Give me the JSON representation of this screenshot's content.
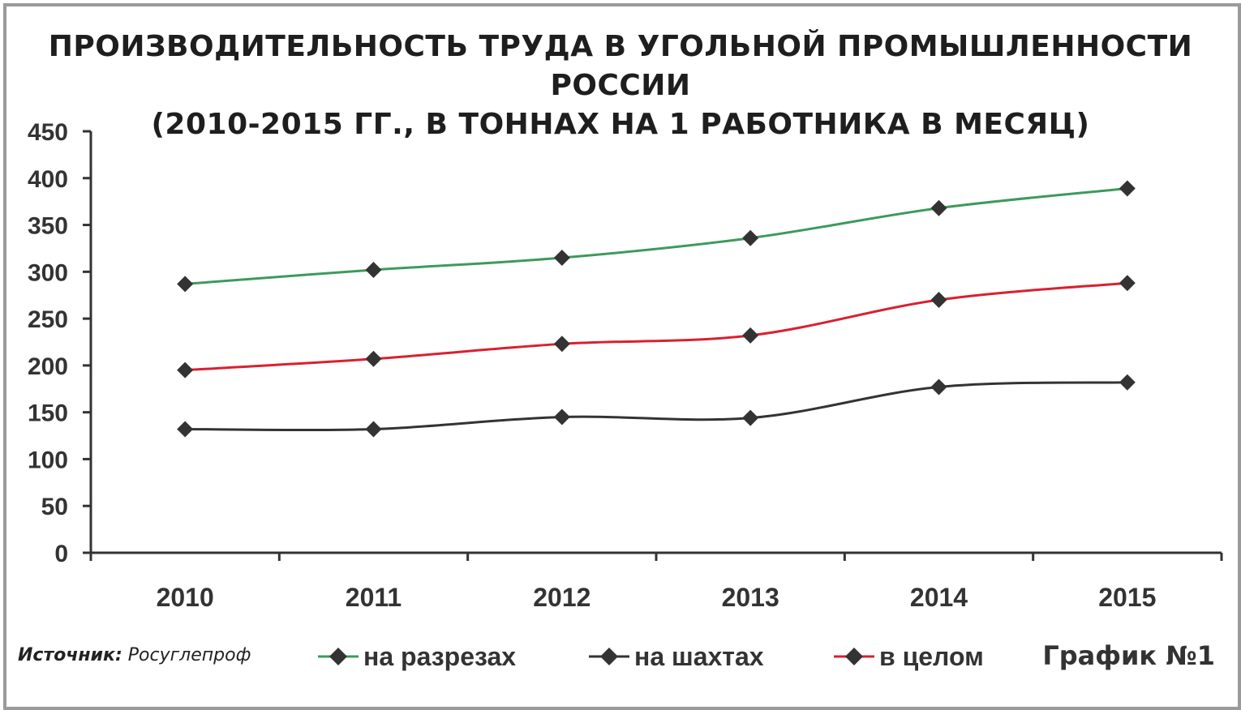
{
  "title": {
    "line1": "ПРОИЗВОДИТЕЛЬНОСТЬ ТРУДА В УГОЛЬНОЙ ПРОМЫШЛЕННОСТИ РОССИИ",
    "line2": "(2010-2015 ГГ., В ТОННАХ НА 1 РАБОТНИКА В МЕСЯЦ)"
  },
  "source": {
    "label": "Источник:",
    "value": "Росуглепроф"
  },
  "graph_number": "График №1",
  "chart_data": {
    "type": "line",
    "title": "ПРОИЗВОДИТЕЛЬНОСТЬ ТРУДА В УГОЛЬНОЙ ПРОМЫШЛЕННОСТИ РОССИИ (2010-2015 ГГ., В ТОННАХ НА 1 РАБОТНИКА В МЕСЯЦ)",
    "categories": [
      "2010",
      "2011",
      "2012",
      "2013",
      "2014",
      "2015"
    ],
    "ylim": [
      0,
      450
    ],
    "yticks": [
      0,
      50,
      100,
      150,
      200,
      250,
      300,
      350,
      400,
      450
    ],
    "grid": false,
    "legend_position": "bottom",
    "series": [
      {
        "name": "на разрезах",
        "color": "#3d9a5c",
        "values": [
          287,
          302,
          315,
          336,
          368,
          389
        ]
      },
      {
        "name": "на шахтах",
        "color": "#333333",
        "values": [
          132,
          132,
          145,
          144,
          177,
          182
        ]
      },
      {
        "name": "в целом",
        "color": "#d9202f",
        "values": [
          195,
          207,
          223,
          232,
          270,
          288
        ]
      }
    ]
  }
}
